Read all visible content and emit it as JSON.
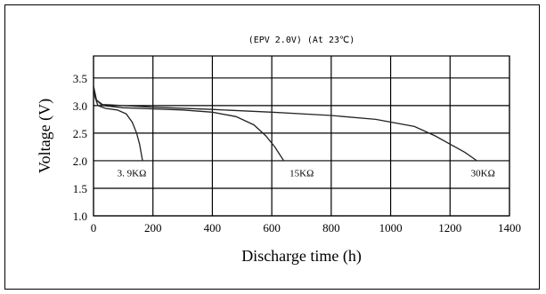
{
  "chart_data": {
    "type": "line",
    "title": "(EPV 2.0V) (At 23℃)",
    "xlabel": "Discharge time (h)",
    "ylabel": "Voltage (V)",
    "xlim": [
      0,
      1400
    ],
    "ylim": [
      1.0,
      4.0
    ],
    "x_ticks": [
      "0",
      "200",
      "400",
      "600",
      "800",
      "1000",
      "1200",
      "1400"
    ],
    "y_ticks": [
      "1.0",
      "1.5",
      "2.0",
      "2.5",
      "3.0",
      "3.5"
    ],
    "grid": true,
    "series": [
      {
        "name": "3.9KΩ",
        "points": [
          [
            0,
            3.35
          ],
          [
            5,
            3.15
          ],
          [
            15,
            3.0
          ],
          [
            40,
            2.95
          ],
          [
            80,
            2.92
          ],
          [
            110,
            2.85
          ],
          [
            130,
            2.7
          ],
          [
            145,
            2.5
          ],
          [
            155,
            2.3
          ],
          [
            165,
            2.0
          ]
        ]
      },
      {
        "name": "15KΩ",
        "points": [
          [
            0,
            3.35
          ],
          [
            10,
            3.1
          ],
          [
            30,
            3.0
          ],
          [
            100,
            2.96
          ],
          [
            200,
            2.94
          ],
          [
            300,
            2.92
          ],
          [
            400,
            2.88
          ],
          [
            480,
            2.8
          ],
          [
            540,
            2.65
          ],
          [
            580,
            2.45
          ],
          [
            610,
            2.25
          ],
          [
            640,
            2.0
          ]
        ]
      },
      {
        "name": "30KΩ",
        "points": [
          [
            0,
            3.35
          ],
          [
            10,
            3.1
          ],
          [
            30,
            3.02
          ],
          [
            200,
            2.97
          ],
          [
            400,
            2.93
          ],
          [
            600,
            2.88
          ],
          [
            800,
            2.82
          ],
          [
            950,
            2.75
          ],
          [
            1080,
            2.62
          ],
          [
            1150,
            2.45
          ],
          [
            1200,
            2.3
          ],
          [
            1250,
            2.15
          ],
          [
            1290,
            2.0
          ]
        ]
      }
    ],
    "annotations": [
      "3. 9KΩ",
      "15KΩ",
      "30KΩ"
    ]
  }
}
